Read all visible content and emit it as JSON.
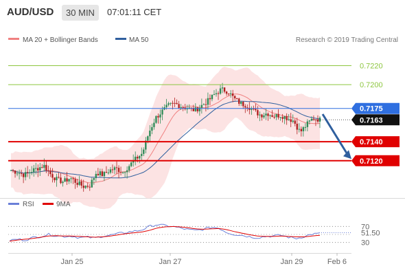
{
  "header": {
    "symbol": "AUD/USD",
    "timeframe": "30 MIN",
    "time": "07:01:11 CET"
  },
  "credit": "Research © 2019 Trading Central",
  "legend": {
    "bollinger": "MA 20 + Bollinger Bands",
    "ma50": "MA 50",
    "rsi": "RSI",
    "ma9": "9MA"
  },
  "colors": {
    "bollinger": "#f08080",
    "ma50": "#2f5f9e",
    "resistance_green": "#8dc63f",
    "support_red": "#e00000",
    "pivot_blue": "#2f6fe0",
    "rsi": "#6a7fd8",
    "ma9": "#e00000"
  },
  "chart_data": [
    {
      "type": "candlestick",
      "y_range": [
        0.7083,
        0.7242
      ],
      "x_ticks": [
        "Jan 25",
        "Jan 27",
        "Jan 29",
        "Feb 6"
      ],
      "price_levels": [
        {
          "value": 0.722,
          "label": "0.7220",
          "kind": "resistance"
        },
        {
          "value": 0.72,
          "label": "0.7200",
          "kind": "resistance"
        },
        {
          "value": 0.7175,
          "label": "0.7175",
          "kind": "pivot"
        },
        {
          "value": 0.7163,
          "label": "0.7163",
          "kind": "last-price"
        },
        {
          "value": 0.714,
          "label": "0.7140",
          "kind": "support"
        },
        {
          "value": 0.712,
          "label": "0.7120",
          "kind": "support"
        }
      ],
      "forecast": {
        "from": 0.7169,
        "to": 0.7124,
        "direction": "down"
      },
      "close_path": [
        0.711,
        0.7108,
        0.7105,
        0.7109,
        0.7112,
        0.7115,
        0.7106,
        0.71,
        0.7098,
        0.7102,
        0.7097,
        0.7093,
        0.7094,
        0.7108,
        0.7105,
        0.711,
        0.7112,
        0.7108,
        0.7115,
        0.7122,
        0.7128,
        0.715,
        0.7165,
        0.7172,
        0.7178,
        0.718,
        0.7177,
        0.7175,
        0.7173,
        0.7178,
        0.7183,
        0.719,
        0.7195,
        0.7193,
        0.7185,
        0.718,
        0.7178,
        0.7172,
        0.7168,
        0.717,
        0.7167,
        0.7168,
        0.7165,
        0.7162,
        0.715,
        0.7158,
        0.7165,
        0.7163
      ]
    },
    {
      "type": "line",
      "title": "RSI",
      "series_names": [
        "RSI",
        "9MA"
      ],
      "ticks": [
        70,
        30
      ],
      "current_label": "51.50",
      "rsi_path": [
        35,
        38,
        36,
        42,
        45,
        50,
        47,
        45,
        46,
        42,
        43,
        41,
        46,
        48,
        52,
        55,
        58,
        61,
        70,
        75,
        72,
        70,
        66,
        62,
        60,
        63,
        68,
        66,
        55,
        50,
        48,
        44,
        42,
        45,
        46,
        48,
        43,
        40,
        45,
        51,
        52
      ],
      "ma9_path": [
        33,
        36,
        38,
        40,
        43,
        46,
        47,
        46,
        46,
        45,
        44,
        43,
        44,
        46,
        49,
        52,
        54,
        56,
        60,
        66,
        69,
        70,
        69,
        67,
        64,
        63,
        64,
        65,
        62,
        57,
        53,
        49,
        46,
        45,
        45,
        46,
        45,
        44,
        44,
        46,
        48
      ]
    }
  ]
}
